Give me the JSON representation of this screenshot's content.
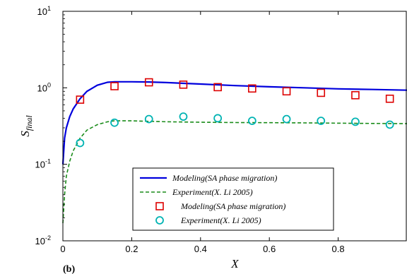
{
  "chart_data": {
    "type": "line",
    "panel_label": "(b)",
    "xlabel": "X",
    "ylabel": "S_final",
    "ylabel_main": "S",
    "ylabel_sub": "final",
    "xlim": [
      0,
      1
    ],
    "ylim": [
      0.01,
      10
    ],
    "yscale": "log",
    "grid": false,
    "legend_position": "bottom-right",
    "xticks": [
      {
        "value": 0,
        "label": "0"
      },
      {
        "value": 0.2,
        "label": "0.2"
      },
      {
        "value": 0.4,
        "label": "0.4"
      },
      {
        "value": 0.6,
        "label": "0.6"
      },
      {
        "value": 0.8,
        "label": "0.8"
      }
    ],
    "yticks": [
      {
        "value": 0.01,
        "base": "10",
        "exp": "-2"
      },
      {
        "value": 0.1,
        "base": "10",
        "exp": "-1"
      },
      {
        "value": 1,
        "base": "10",
        "exp": "0"
      },
      {
        "value": 10,
        "base": "10",
        "exp": "1"
      }
    ],
    "series": [
      {
        "name": "Modeling(SA phase migration)",
        "kind": "line",
        "color": "#0000dd",
        "dash": "solid",
        "x": [
          0.0,
          0.005,
          0.01,
          0.02,
          0.03,
          0.05,
          0.07,
          0.1,
          0.13,
          0.15,
          0.2,
          0.25,
          0.3,
          0.4,
          0.5,
          0.6,
          0.7,
          0.8,
          0.9,
          1.0
        ],
        "y": [
          0.1,
          0.22,
          0.3,
          0.42,
          0.53,
          0.72,
          0.9,
          1.08,
          1.18,
          1.2,
          1.2,
          1.19,
          1.17,
          1.12,
          1.07,
          1.03,
          1.0,
          0.97,
          0.95,
          0.93
        ]
      },
      {
        "name": "Experiment(X. Li 2005)",
        "kind": "line",
        "color": "#1a8c1a",
        "dash": "dashed",
        "x": [
          0.0,
          0.005,
          0.01,
          0.02,
          0.03,
          0.05,
          0.07,
          0.1,
          0.13,
          0.15,
          0.2,
          0.25,
          0.3,
          0.4,
          0.5,
          0.6,
          0.7,
          0.8,
          0.9,
          1.0
        ],
        "y": [
          0.017,
          0.04,
          0.07,
          0.11,
          0.15,
          0.22,
          0.28,
          0.33,
          0.36,
          0.37,
          0.37,
          0.365,
          0.36,
          0.355,
          0.352,
          0.35,
          0.348,
          0.345,
          0.342,
          0.34
        ]
      },
      {
        "name": "Modeling(SA phase migration)",
        "kind": "markers",
        "marker": "square",
        "color": "#dd0000",
        "x": [
          0.05,
          0.15,
          0.25,
          0.35,
          0.45,
          0.55,
          0.65,
          0.75,
          0.85,
          0.95
        ],
        "y": [
          0.7,
          1.05,
          1.18,
          1.1,
          1.02,
          0.98,
          0.9,
          0.86,
          0.8,
          0.72
        ]
      },
      {
        "name": "Experiment(X. Li 2005)",
        "kind": "markers",
        "marker": "circle",
        "color": "#00b3b3",
        "x": [
          0.05,
          0.15,
          0.25,
          0.35,
          0.45,
          0.55,
          0.65,
          0.75,
          0.85,
          0.95
        ],
        "y": [
          0.19,
          0.35,
          0.39,
          0.42,
          0.4,
          0.37,
          0.39,
          0.37,
          0.36,
          0.33
        ]
      }
    ]
  }
}
